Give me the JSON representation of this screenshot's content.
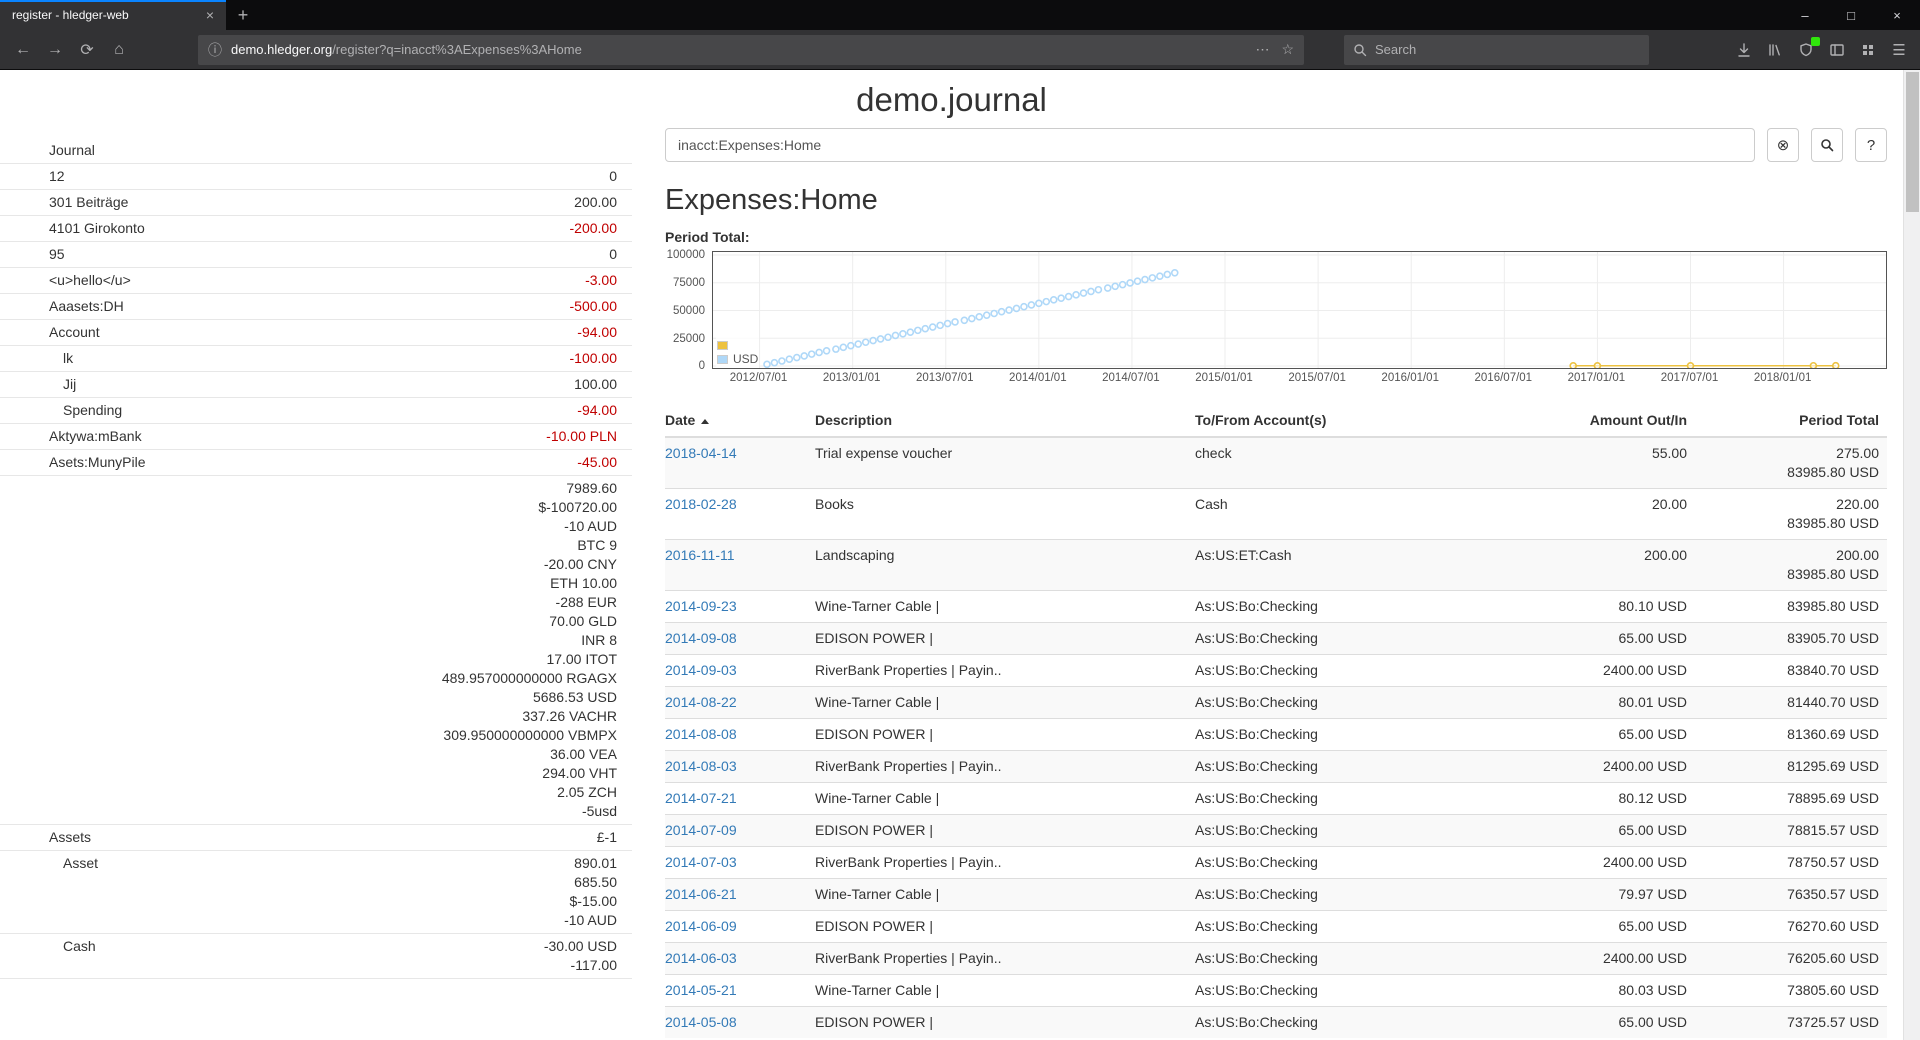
{
  "browser": {
    "tab": {
      "title": "register - hledger-web"
    },
    "url": {
      "domain": "demo.hledger.org",
      "path": "/register?q=inacct%3AExpenses%3AHome"
    },
    "search_placeholder": "Search",
    "glyphs": {
      "new_tab": "+",
      "tab_close": "×",
      "minimize": "–",
      "maximize": "□",
      "close": "×",
      "back": "←",
      "forward": "→",
      "reload": "⟳",
      "home": "⌂",
      "info": "ⓘ",
      "dots": "⋯",
      "star": "☆",
      "menu": "☰"
    },
    "icon_names": [
      "download-icon",
      "library-icon",
      "extension-icon",
      "sidebar-toggle-icon",
      "grid-icon",
      "menu-icon"
    ]
  },
  "colors": {
    "link": "#337ab7",
    "negative": "#c00000",
    "tab_accent": "#0a84ff",
    "series_no_symbol": "#edc240",
    "series_usd": "#afd8f8",
    "chart_border": "#545454",
    "badge_green": "#30e60b"
  },
  "page": {
    "title": "demo.journal",
    "query_value": "inacct:Expenses:Home",
    "clear_label": "⊗",
    "help_label": "?",
    "heading": "Expenses:Home",
    "chart_label": "Period Total:"
  },
  "sidebar": {
    "journal_label": "Journal",
    "accounts": [
      {
        "name": "12",
        "depth": 1,
        "balances": [
          {
            "v": "0",
            "neg": false
          }
        ]
      },
      {
        "name": "301 Beiträge",
        "depth": 1,
        "balances": [
          {
            "v": "200.00",
            "neg": false
          }
        ]
      },
      {
        "name": "4101 Girokonto",
        "depth": 1,
        "balances": [
          {
            "v": "-200.00",
            "neg": true
          }
        ]
      },
      {
        "name": "95",
        "depth": 1,
        "balances": [
          {
            "v": "0",
            "neg": false
          }
        ]
      },
      {
        "name": "<u>hello</u>",
        "depth": 1,
        "balances": [
          {
            "v": "-3.00",
            "neg": true
          }
        ]
      },
      {
        "name": "Aaasets:DH",
        "depth": 1,
        "balances": [
          {
            "v": "-500.00",
            "neg": true
          }
        ]
      },
      {
        "name": "Account",
        "depth": 1,
        "balances": [
          {
            "v": "-94.00",
            "neg": true
          }
        ]
      },
      {
        "name": "lk",
        "depth": 2,
        "balances": [
          {
            "v": "-100.00",
            "neg": true
          }
        ]
      },
      {
        "name": "Jij",
        "depth": 2,
        "balances": [
          {
            "v": "100.00",
            "neg": false
          }
        ]
      },
      {
        "name": "Spending",
        "depth": 2,
        "balances": [
          {
            "v": "-94.00",
            "neg": true
          }
        ]
      },
      {
        "name": "Aktywa:mBank",
        "depth": 1,
        "balances": [
          {
            "v": "-10.00 PLN",
            "neg": true
          }
        ]
      },
      {
        "name": "Asets:MunyPile",
        "depth": 1,
        "balances": [
          {
            "v": "-45.00",
            "neg": true
          }
        ]
      },
      {
        "name": "",
        "depth": 1,
        "balances": [
          {
            "v": "7989.60",
            "neg": false
          },
          {
            "v": "$-100720.00",
            "neg": false
          },
          {
            "v": "-10 AUD",
            "neg": false
          },
          {
            "v": "BTC 9",
            "neg": false
          },
          {
            "v": "-20.00 CNY",
            "neg": false
          },
          {
            "v": "ETH 10.00",
            "neg": false
          },
          {
            "v": "-288 EUR",
            "neg": false
          },
          {
            "v": "70.00 GLD",
            "neg": false
          },
          {
            "v": "INR 8",
            "neg": false
          },
          {
            "v": "17.00 ITOT",
            "neg": false
          },
          {
            "v": "489.957000000000 RGAGX",
            "neg": false
          },
          {
            "v": "5686.53 USD",
            "neg": false
          },
          {
            "v": "337.26 VACHR",
            "neg": false
          },
          {
            "v": "309.950000000000 VBMPX",
            "neg": false
          },
          {
            "v": "36.00 VEA",
            "neg": false
          },
          {
            "v": "294.00 VHT",
            "neg": false
          },
          {
            "v": "2.05 ZCH",
            "neg": false
          },
          {
            "v": "-5usd",
            "neg": false
          }
        ]
      },
      {
        "name": "Assets",
        "depth": 1,
        "balances": [
          {
            "v": "£-1",
            "neg": false
          }
        ]
      },
      {
        "name": "Asset",
        "depth": 2,
        "balances": [
          {
            "v": "890.01",
            "neg": false
          },
          {
            "v": "685.50",
            "neg": false
          },
          {
            "v": "$-15.00",
            "neg": false
          },
          {
            "v": "-10 AUD",
            "neg": false
          }
        ]
      },
      {
        "name": "Cash",
        "depth": 2,
        "balances": [
          {
            "v": "-30.00 USD",
            "neg": false
          },
          {
            "v": "-117.00",
            "neg": false
          }
        ]
      }
    ]
  },
  "register_table": {
    "columns": [
      "Date",
      "Description",
      "To/From Account(s)",
      "Amount Out/In",
      "Period Total"
    ],
    "sort_column": "Date",
    "sort_direction": "ascending",
    "rows": [
      {
        "date": "2018-04-14",
        "description": "Trial expense voucher",
        "account": "check",
        "amount": "55.00",
        "totals": [
          "275.00",
          "83985.80 USD"
        ]
      },
      {
        "date": "2018-02-28",
        "description": "Books",
        "account": "Cash",
        "amount": "20.00",
        "totals": [
          "220.00",
          "83985.80 USD"
        ]
      },
      {
        "date": "2016-11-11",
        "description": "Landscaping",
        "account": "As:US:ET:Cash",
        "amount": "200.00",
        "totals": [
          "200.00",
          "83985.80 USD"
        ]
      },
      {
        "date": "2014-09-23",
        "description": "Wine-Tarner Cable |",
        "account": "As:US:Bo:Checking",
        "amount": "80.10 USD",
        "totals": [
          "83985.80 USD"
        ]
      },
      {
        "date": "2014-09-08",
        "description": "EDISON POWER |",
        "account": "As:US:Bo:Checking",
        "amount": "65.00 USD",
        "totals": [
          "83905.70 USD"
        ]
      },
      {
        "date": "2014-09-03",
        "description": "RiverBank Properties | Payin..",
        "account": "As:US:Bo:Checking",
        "amount": "2400.00 USD",
        "totals": [
          "83840.70 USD"
        ]
      },
      {
        "date": "2014-08-22",
        "description": "Wine-Tarner Cable |",
        "account": "As:US:Bo:Checking",
        "amount": "80.01 USD",
        "totals": [
          "81440.70 USD"
        ]
      },
      {
        "date": "2014-08-08",
        "description": "EDISON POWER |",
        "account": "As:US:Bo:Checking",
        "amount": "65.00 USD",
        "totals": [
          "81360.69 USD"
        ]
      },
      {
        "date": "2014-08-03",
        "description": "RiverBank Properties | Payin..",
        "account": "As:US:Bo:Checking",
        "amount": "2400.00 USD",
        "totals": [
          "81295.69 USD"
        ]
      },
      {
        "date": "2014-07-21",
        "description": "Wine-Tarner Cable |",
        "account": "As:US:Bo:Checking",
        "amount": "80.12 USD",
        "totals": [
          "78895.69 USD"
        ]
      },
      {
        "date": "2014-07-09",
        "description": "EDISON POWER |",
        "account": "As:US:Bo:Checking",
        "amount": "65.00 USD",
        "totals": [
          "78815.57 USD"
        ]
      },
      {
        "date": "2014-07-03",
        "description": "RiverBank Properties | Payin..",
        "account": "As:US:Bo:Checking",
        "amount": "2400.00 USD",
        "totals": [
          "78750.57 USD"
        ]
      },
      {
        "date": "2014-06-21",
        "description": "Wine-Tarner Cable |",
        "account": "As:US:Bo:Checking",
        "amount": "79.97 USD",
        "totals": [
          "76350.57 USD"
        ]
      },
      {
        "date": "2014-06-09",
        "description": "EDISON POWER |",
        "account": "As:US:Bo:Checking",
        "amount": "65.00 USD",
        "totals": [
          "76270.60 USD"
        ]
      },
      {
        "date": "2014-06-03",
        "description": "RiverBank Properties | Payin..",
        "account": "As:US:Bo:Checking",
        "amount": "2400.00 USD",
        "totals": [
          "76205.60 USD"
        ]
      },
      {
        "date": "2014-05-21",
        "description": "Wine-Tarner Cable |",
        "account": "As:US:Bo:Checking",
        "amount": "80.03 USD",
        "totals": [
          "73805.60 USD"
        ]
      },
      {
        "date": "2014-05-08",
        "description": "EDISON POWER |",
        "account": "As:US:Bo:Checking",
        "amount": "65.00 USD",
        "totals": [
          "73725.57 USD"
        ]
      }
    ]
  },
  "chart_data": {
    "type": "line",
    "title": "Period Total:",
    "x_domain": [
      2012.25,
      2018.55
    ],
    "y_domain": [
      0,
      100000
    ],
    "ylim": [
      0,
      100000
    ],
    "grid": true,
    "legend_position": "bottom-left",
    "y_ticks": [
      {
        "v": 0,
        "label": "0"
      },
      {
        "v": 25000,
        "label": "25000"
      },
      {
        "v": 50000,
        "label": "50000"
      },
      {
        "v": 75000,
        "label": "75000"
      },
      {
        "v": 100000,
        "label": "100000"
      }
    ],
    "x_ticks": [
      {
        "v": 2012.5,
        "label": "2012/07/01"
      },
      {
        "v": 2013.0,
        "label": "2013/01/01"
      },
      {
        "v": 2013.5,
        "label": "2013/07/01"
      },
      {
        "v": 2014.0,
        "label": "2014/01/01"
      },
      {
        "v": 2014.5,
        "label": "2014/07/01"
      },
      {
        "v": 2015.0,
        "label": "2015/01/01"
      },
      {
        "v": 2015.5,
        "label": "2015/07/01"
      },
      {
        "v": 2016.0,
        "label": "2016/01/01"
      },
      {
        "v": 2016.5,
        "label": "2016/07/01"
      },
      {
        "v": 2017.0,
        "label": "2017/01/01"
      },
      {
        "v": 2017.5,
        "label": "2017/07/01"
      },
      {
        "v": 2018.0,
        "label": "2018/01/01"
      }
    ],
    "series": [
      {
        "name": "",
        "color": "#edc240",
        "mode": "line+points",
        "points": [
          [
            2016.87,
            200
          ],
          [
            2017.0,
            205
          ],
          [
            2017.5,
            212
          ],
          [
            2018.16,
            220
          ],
          [
            2018.28,
            275
          ]
        ]
      },
      {
        "name": "USD",
        "color": "#afd8f8",
        "mode": "points",
        "points": [
          [
            2012.54,
            1500
          ],
          [
            2012.58,
            3000
          ],
          [
            2012.62,
            4500
          ],
          [
            2012.66,
            6100
          ],
          [
            2012.7,
            7600
          ],
          [
            2012.74,
            9100
          ],
          [
            2012.78,
            10700
          ],
          [
            2012.82,
            12200
          ],
          [
            2012.86,
            13700
          ],
          [
            2012.91,
            15200
          ],
          [
            2012.95,
            16800
          ],
          [
            2012.99,
            18300
          ],
          [
            2013.03,
            19800
          ],
          [
            2013.07,
            21400
          ],
          [
            2013.11,
            22900
          ],
          [
            2013.15,
            24400
          ],
          [
            2013.19,
            25900
          ],
          [
            2013.23,
            27500
          ],
          [
            2013.27,
            29000
          ],
          [
            2013.31,
            30500
          ],
          [
            2013.35,
            32100
          ],
          [
            2013.39,
            33600
          ],
          [
            2013.43,
            35100
          ],
          [
            2013.47,
            36600
          ],
          [
            2013.51,
            38200
          ],
          [
            2013.55,
            39700
          ],
          [
            2013.6,
            41200
          ],
          [
            2013.64,
            42700
          ],
          [
            2013.68,
            44300
          ],
          [
            2013.72,
            45800
          ],
          [
            2013.76,
            47300
          ],
          [
            2013.8,
            48900
          ],
          [
            2013.84,
            50400
          ],
          [
            2013.88,
            51900
          ],
          [
            2013.92,
            53400
          ],
          [
            2013.96,
            55000
          ],
          [
            2014.0,
            56500
          ],
          [
            2014.04,
            58000
          ],
          [
            2014.08,
            59600
          ],
          [
            2014.12,
            61100
          ],
          [
            2014.16,
            62600
          ],
          [
            2014.2,
            64100
          ],
          [
            2014.24,
            65700
          ],
          [
            2014.28,
            67200
          ],
          [
            2014.32,
            68700
          ],
          [
            2014.37,
            70200
          ],
          [
            2014.41,
            71800
          ],
          [
            2014.45,
            73300
          ],
          [
            2014.49,
            74800
          ],
          [
            2014.53,
            76400
          ],
          [
            2014.57,
            77900
          ],
          [
            2014.61,
            79400
          ],
          [
            2014.65,
            80900
          ],
          [
            2014.69,
            82500
          ],
          [
            2014.73,
            83986
          ]
        ]
      }
    ]
  }
}
